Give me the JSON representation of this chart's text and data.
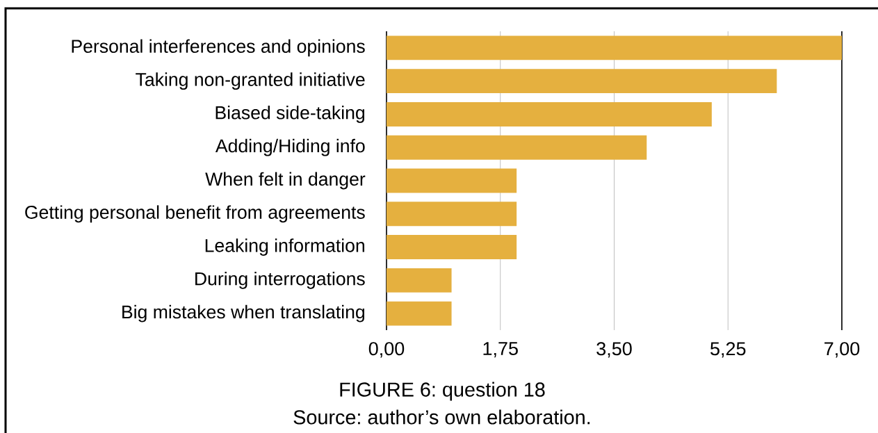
{
  "chart_data": {
    "type": "bar",
    "orientation": "horizontal",
    "categories": [
      "Personal interferences and opinions",
      "Taking non-granted initiative",
      "Biased side-taking",
      "Adding/Hiding info",
      "When felt in danger",
      "Getting personal benefit from agreements",
      "Leaking information",
      "During interrogations",
      "Big mistakes when translating"
    ],
    "values": [
      7,
      6,
      5,
      4,
      2,
      2,
      2,
      1,
      1
    ],
    "color": "#e5b03f",
    "xlim": [
      0,
      7
    ],
    "xticks": [
      {
        "value": 0,
        "label": "0,00"
      },
      {
        "value": 1.75,
        "label": "1,75"
      },
      {
        "value": 3.5,
        "label": "3,50"
      },
      {
        "value": 5.25,
        "label": "5,25"
      },
      {
        "value": 7,
        "label": "7,00"
      }
    ],
    "grid": "x",
    "annotations": [
      "FIGURE 6: question 18",
      "Source: author’s own elaboration."
    ]
  }
}
